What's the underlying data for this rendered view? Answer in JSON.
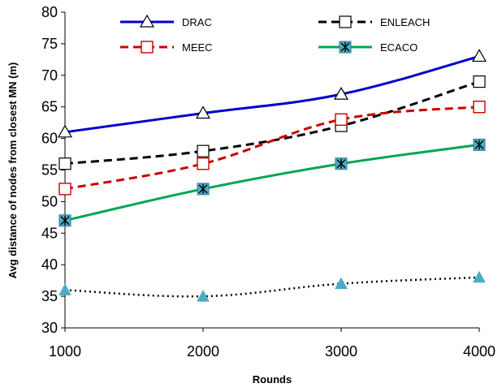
{
  "chart_data": {
    "type": "line",
    "x": [
      1000,
      2000,
      3000,
      4000
    ],
    "xlabel": "Rounds",
    "ylabel": "Avg distance of nodes from closest MN (m)",
    "ylim": [
      30,
      80
    ],
    "yticks": [
      30,
      35,
      40,
      45,
      50,
      55,
      60,
      65,
      70,
      75,
      80
    ],
    "xticks": [
      1000,
      2000,
      3000,
      4000
    ],
    "grid": false,
    "legend_position": "top",
    "series": [
      {
        "name": "DRAC",
        "values": [
          61,
          64,
          67,
          73
        ],
        "color": "#0000cc",
        "dash": "solid",
        "marker": "triangle-open"
      },
      {
        "name": "ENLEACH",
        "values": [
          56,
          58,
          62,
          69
        ],
        "color": "#000000",
        "dash": "dashed",
        "marker": "square-open"
      },
      {
        "name": "MEEC",
        "values": [
          52,
          56,
          63,
          65
        ],
        "color": "#cc0000",
        "dash": "dashed",
        "marker": "square-open-red"
      },
      {
        "name": "ECACO",
        "values": [
          47,
          52,
          56,
          59
        ],
        "color": "#00a651",
        "dash": "solid",
        "marker": "star-filled"
      },
      {
        "name": "",
        "values": [
          36,
          35,
          37,
          38
        ],
        "color": "#000000",
        "dash": "dotted",
        "marker": "triangle-filled"
      }
    ]
  }
}
